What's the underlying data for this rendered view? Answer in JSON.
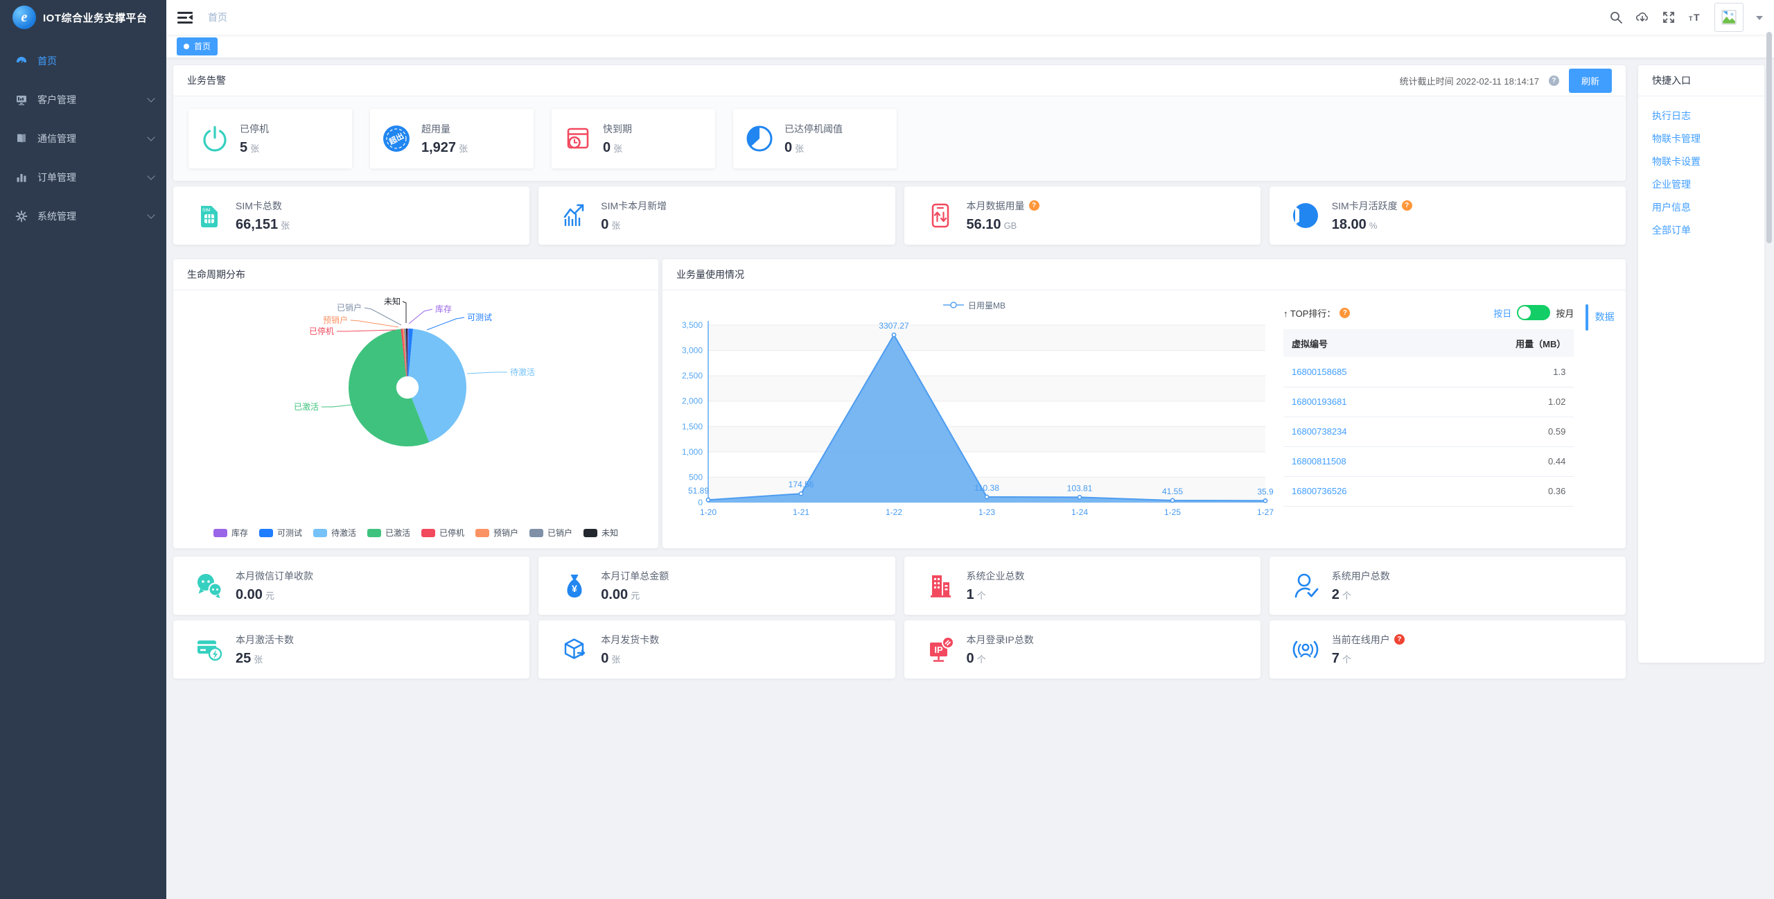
{
  "app": {
    "title": "IOT综合业务支撑平台",
    "accent": "#409eff"
  },
  "header": {
    "breadcrumb": "首页"
  },
  "tagbar": {
    "active_tag": "首页"
  },
  "sidebar": {
    "items": [
      {
        "label": "首页",
        "icon": "dashboard-icon",
        "active": true,
        "expandable": false
      },
      {
        "label": "客户管理",
        "icon": "customer-icon",
        "active": false,
        "expandable": true
      },
      {
        "label": "通信管理",
        "icon": "communication-icon",
        "active": false,
        "expandable": true
      },
      {
        "label": "订单管理",
        "icon": "order-icon",
        "active": false,
        "expandable": true
      },
      {
        "label": "系统管理",
        "icon": "system-icon",
        "active": false,
        "expandable": true
      }
    ]
  },
  "alerts": {
    "title": "业务告警",
    "stat_time_text": "统计截止时间 2022-02-11 18:14:17",
    "refresh_label": "刷新",
    "cards": [
      {
        "label": "已停机",
        "value": "5",
        "unit": "张",
        "icon": "power-icon",
        "color": "#36d0c0",
        "help": null
      },
      {
        "label": "超用量",
        "value": "1,927",
        "unit": "张",
        "icon": "over-usage-icon",
        "color": "#2186f0",
        "help": null
      },
      {
        "label": "快到期",
        "value": "0",
        "unit": "张",
        "icon": "expiring-icon",
        "color": "#f2495f",
        "help": null
      },
      {
        "label": "已达停机阈值",
        "value": "0",
        "unit": "张",
        "icon": "threshold-gauge-icon",
        "color": "#2186f0",
        "help": null
      }
    ]
  },
  "sim_row": [
    {
      "label": "SIM卡总数",
      "value": "66,151",
      "unit": "张",
      "icon": "sim-card-icon",
      "color": "#36d0c0",
      "help": null
    },
    {
      "label": "SIM卡本月新增",
      "value": "0",
      "unit": "张",
      "icon": "trend-up-icon",
      "color": "#2186f0",
      "help": null
    },
    {
      "label": "本月数据用量",
      "value": "56.10",
      "unit": "GB",
      "icon": "data-usage-icon",
      "color": "#f2495f",
      "help": "orange"
    },
    {
      "label": "SIM卡月活跃度",
      "value": "18.00",
      "unit": "%",
      "icon": "activity-pie-icon",
      "color": "#2186f0",
      "help": "orange"
    }
  ],
  "stats_row1": [
    {
      "label": "本月微信订单收款",
      "value": "0.00",
      "unit": "元",
      "icon": "wechat-icon",
      "color": "#36d0c0",
      "help": null
    },
    {
      "label": "本月订单总金额",
      "value": "0.00",
      "unit": "元",
      "icon": "money-bag-icon",
      "color": "#2186f0",
      "help": null
    },
    {
      "label": "系统企业总数",
      "value": "1",
      "unit": "个",
      "icon": "building-icon",
      "color": "#f2495f",
      "help": null
    },
    {
      "label": "系统用户总数",
      "value": "2",
      "unit": "个",
      "icon": "user-check-icon",
      "color": "#2186f0",
      "help": null
    }
  ],
  "stats_row2": [
    {
      "label": "本月激活卡数",
      "value": "25",
      "unit": "张",
      "icon": "card-activate-icon",
      "color": "#36d0c0",
      "help": null
    },
    {
      "label": "本月发货卡数",
      "value": "0",
      "unit": "张",
      "icon": "shipping-box-icon",
      "color": "#2186f0",
      "help": null
    },
    {
      "label": "本月登录IP总数",
      "value": "0",
      "unit": "个",
      "icon": "ip-icon",
      "color": "#f2495f",
      "help": null
    },
    {
      "label": "当前在线用户",
      "value": "7",
      "unit": "个",
      "icon": "online-user-icon",
      "color": "#2186f0",
      "help": "red"
    }
  ],
  "top_rank": {
    "title": "↑ TOP排行：",
    "toggle_left": "按日",
    "toggle_right": "按月",
    "side_tab": "数据",
    "columns": [
      "虚拟编号",
      "用量（MB）"
    ],
    "rows": [
      [
        "16800158685",
        "1.3"
      ],
      [
        "16800193681",
        "1.02"
      ],
      [
        "16800738234",
        "0.59"
      ],
      [
        "16800811508",
        "0.44"
      ],
      [
        "16800736526",
        "0.36"
      ]
    ]
  },
  "quick_panel": {
    "title": "快捷入口",
    "links": [
      "执行日志",
      "物联卡管理",
      "物联卡设置",
      "企业管理",
      "用户信息",
      "全部订单"
    ]
  },
  "chart_data": [
    {
      "type": "pie",
      "title": "生命周期分布",
      "labels": [
        "库存",
        "可测试",
        "待激活",
        "已激活",
        "已停机",
        "预销户",
        "已销户",
        "未知"
      ],
      "values": [
        0.3,
        1.2,
        42.5,
        54.2,
        0.5,
        0.4,
        0.5,
        0.4
      ],
      "unit": "%",
      "colors": [
        "#9a66e8",
        "#1f7dff",
        "#74c2f8",
        "#3fc27e",
        "#f2495c",
        "#fb9263",
        "#7f90a8",
        "#23272e"
      ],
      "legend_position": "bottom",
      "donut_hole": 0.19
    },
    {
      "type": "area",
      "title": "业务量使用情况",
      "x": [
        "1-20",
        "1-21",
        "1-22",
        "1-23",
        "1-24",
        "1-25",
        "1-27"
      ],
      "series": [
        {
          "name": "日用量MB",
          "values": [
            51.89,
            174.56,
            3307.27,
            110.38,
            103.81,
            41.55,
            35.9
          ]
        }
      ],
      "ylim": [
        0,
        3500
      ],
      "ytick_step": 500,
      "color": "#57a3f3",
      "grid": true,
      "legend_position": "top"
    }
  ]
}
